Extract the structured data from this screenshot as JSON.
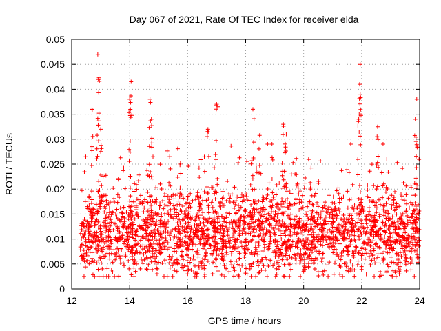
{
  "chart_data": {
    "type": "scatter",
    "title": "Day 067 of 2021, Rate Of TEC Index for receiver elda",
    "xlabel": "GPS time / hours",
    "ylabel": "ROTI / TECUs",
    "xlim": [
      12,
      24
    ],
    "ylim": [
      0,
      0.05
    ],
    "grid": true,
    "marker": "+",
    "series_color": "#ff0000",
    "x_ticks": [
      "12",
      "14",
      "16",
      "18",
      "20",
      "22",
      "24"
    ],
    "y_ticks": [
      "0",
      "0.005",
      "0.01",
      "0.015",
      "0.02",
      "0.025",
      "0.03",
      "0.035",
      "0.04",
      "0.045",
      "0.05"
    ],
    "series": [
      {
        "name": "ROTI",
        "density_profile": {
          "description": "Dense cloud of ROTI samples; typical band 0.005-0.02 TECU/min with spikes",
          "x_range": [
            12.3,
            24.0
          ],
          "baseline_center": 0.011,
          "baseline_spread": 0.004
        },
        "peaks": [
          {
            "x": 12.9,
            "y": 0.047
          },
          {
            "x": 12.92,
            "y": 0.042
          },
          {
            "x": 12.7,
            "y": 0.036
          },
          {
            "x": 13.0,
            "y": 0.032
          },
          {
            "x": 14.05,
            "y": 0.0415
          },
          {
            "x": 14.0,
            "y": 0.038
          },
          {
            "x": 14.7,
            "y": 0.038
          },
          {
            "x": 14.75,
            "y": 0.034
          },
          {
            "x": 17.0,
            "y": 0.037
          },
          {
            "x": 16.7,
            "y": 0.032
          },
          {
            "x": 18.25,
            "y": 0.036
          },
          {
            "x": 18.5,
            "y": 0.031
          },
          {
            "x": 19.3,
            "y": 0.033
          },
          {
            "x": 19.4,
            "y": 0.031
          },
          {
            "x": 21.95,
            "y": 0.045
          },
          {
            "x": 21.95,
            "y": 0.039
          },
          {
            "x": 21.9,
            "y": 0.034
          },
          {
            "x": 22.55,
            "y": 0.0325
          },
          {
            "x": 23.9,
            "y": 0.038
          },
          {
            "x": 23.85,
            "y": 0.034
          },
          {
            "x": 16.0,
            "y": 0.003
          },
          {
            "x": 14.2,
            "y": 0.0035
          },
          {
            "x": 23.3,
            "y": 0.003
          },
          {
            "x": 20.0,
            "y": 0.0035
          }
        ]
      }
    ]
  }
}
